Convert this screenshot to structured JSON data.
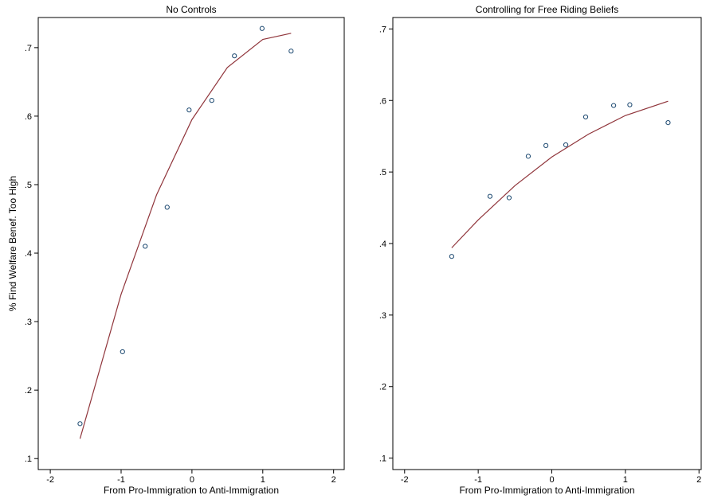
{
  "chart_data": [
    {
      "type": "scatter",
      "title": "No Controls",
      "x_label": "From Pro-Immigration to Anti-Immigration",
      "y_label": "% Find Welfare Benef. Too High",
      "xlim": [
        -2.17,
        2.15
      ],
      "ylim": [
        0.084,
        0.744
      ],
      "xticks": [
        -2,
        -1,
        0,
        1,
        2
      ],
      "yticks": [
        {
          "value": 0.1,
          "label": ".1"
        },
        {
          "value": 0.2,
          "label": ".2"
        },
        {
          "value": 0.3,
          "label": ".3"
        },
        {
          "value": 0.4,
          "label": ".4"
        },
        {
          "value": 0.5,
          "label": ".5"
        },
        {
          "value": 0.6,
          "label": ".6"
        },
        {
          "value": 0.7,
          "label": ".7"
        }
      ],
      "series": [
        {
          "type": "scatter",
          "color": "#1a476f",
          "x": [
            -1.58,
            -0.98,
            -0.66,
            -0.35,
            -0.04,
            0.28,
            0.6,
            0.99,
            1.4
          ],
          "values": [
            0.151,
            0.256,
            0.41,
            0.467,
            0.609,
            0.623,
            0.688,
            0.728,
            0.695
          ]
        },
        {
          "type": "line",
          "color": "#90353b",
          "x": [
            -1.58,
            -1,
            -0.5,
            0,
            0.5,
            1,
            1.4
          ],
          "values": [
            0.129,
            0.34,
            0.485,
            0.595,
            0.671,
            0.712,
            0.721
          ]
        }
      ]
    },
    {
      "type": "scatter",
      "title": "Controlling for Free Riding Beliefs",
      "x_label": "From Pro-Immigration to Anti-Immigration",
      "xlim": [
        -2.16,
        2.03
      ],
      "ylim": [
        0.084,
        0.716
      ],
      "xticks": [
        -2,
        -1,
        0,
        1,
        2
      ],
      "yticks": [
        {
          "value": 0.1,
          "label": ".1"
        },
        {
          "value": 0.2,
          "label": ".2"
        },
        {
          "value": 0.3,
          "label": ".3"
        },
        {
          "value": 0.4,
          "label": ".4"
        },
        {
          "value": 0.5,
          "label": ".5"
        },
        {
          "value": 0.6,
          "label": ".6"
        },
        {
          "value": 0.7,
          "label": ".7"
        }
      ],
      "series": [
        {
          "type": "scatter",
          "color": "#1a476f",
          "x": [
            -1.36,
            -0.84,
            -0.58,
            -0.32,
            -0.08,
            0.19,
            0.46,
            0.84,
            1.06,
            1.58
          ],
          "values": [
            0.382,
            0.466,
            0.464,
            0.522,
            0.537,
            0.538,
            0.577,
            0.593,
            0.594,
            0.569
          ]
        },
        {
          "type": "line",
          "color": "#90353b",
          "x": [
            -1.36,
            -1,
            -0.5,
            0,
            0.5,
            1,
            1.58
          ],
          "values": [
            0.394,
            0.433,
            0.481,
            0.521,
            0.553,
            0.579,
            0.599
          ]
        }
      ]
    }
  ]
}
